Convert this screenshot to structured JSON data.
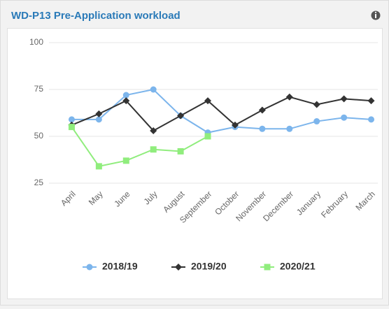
{
  "chart_data": {
    "type": "line",
    "title": "WD-P13 Pre-Application workload",
    "categories": [
      "April",
      "May",
      "June",
      "July",
      "August",
      "September",
      "October",
      "November",
      "December",
      "January",
      "February",
      "March"
    ],
    "series": [
      {
        "name": "2018/19",
        "color": "#7cb5ec",
        "marker": "circle",
        "values": [
          59,
          59,
          72,
          75,
          61,
          52,
          55,
          54,
          54,
          58,
          60,
          59
        ]
      },
      {
        "name": "2019/20",
        "color": "#333333",
        "marker": "diamond",
        "values": [
          56,
          62,
          69,
          53,
          61,
          69,
          56,
          64,
          71,
          67,
          70,
          69
        ]
      },
      {
        "name": "2020/21",
        "color": "#90ed7d",
        "marker": "square",
        "values": [
          55,
          34,
          37,
          43,
          42,
          50,
          null,
          null,
          null,
          null,
          null,
          null
        ]
      }
    ],
    "ylim": [
      25,
      100
    ],
    "yticks": [
      25,
      50,
      75,
      100
    ],
    "grid": true,
    "legend": "bottom"
  }
}
